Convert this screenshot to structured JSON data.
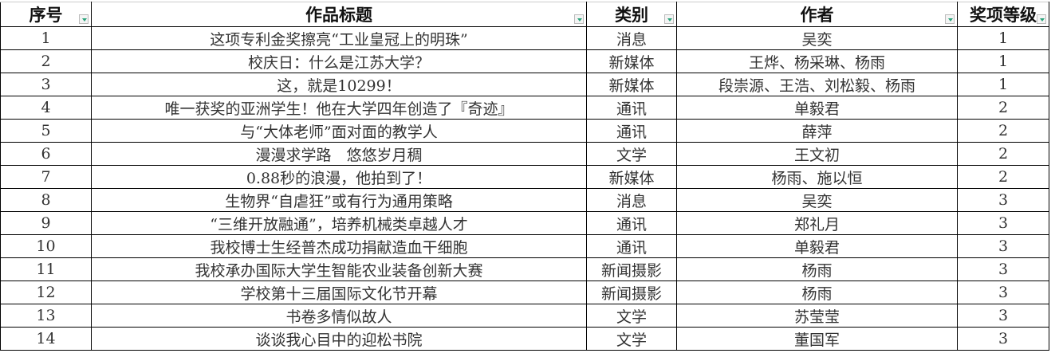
{
  "columns": [
    "序号",
    "作品标题",
    "类别",
    "作者",
    "奖项等级"
  ],
  "rows": [
    [
      "1",
      "这项专利金奖擦亮“工业皇冠上的明珠”",
      "消息",
      "吴奕",
      "1"
    ],
    [
      "2",
      "校庆日：什么是江苏大学？",
      "新媒体",
      "王烨、杨采琳、杨雨",
      "1"
    ],
    [
      "3",
      "这，就是10299！",
      "新媒体",
      "段崇源、王浩、刘松毅、杨雨",
      "1"
    ],
    [
      "4",
      "唯一获奖的亚洲学生！他在大学四年创造了『奇迹』",
      "通讯",
      "单毅君",
      "2"
    ],
    [
      "5",
      "与“大体老师”面对面的教学人",
      "通讯",
      "薛萍",
      "2"
    ],
    [
      "6",
      "漫漫求学路　悠悠岁月稠",
      "文学",
      "王文初",
      "2"
    ],
    [
      "7",
      "0.88秒的浪漫，他拍到了！",
      "新媒体",
      "杨雨、施以恒",
      "2"
    ],
    [
      "8",
      "生物界“自虐狂”或有行为通用策略",
      "消息",
      "吴奕",
      "3"
    ],
    [
      "9",
      "“三维开放融通”，培养机械类卓越人才",
      "通讯",
      "郑礼月",
      "3"
    ],
    [
      "10",
      "我校博士生经普杰成功捐献造血干细胞",
      "通讯",
      "单毅君",
      "3"
    ],
    [
      "11",
      "我校承办国际大学生智能农业装备创新大赛",
      "新闻摄影",
      "杨雨",
      "3"
    ],
    [
      "12",
      "学校第十三届国际文化节开幕",
      "新闻摄影",
      "杨雨",
      "3"
    ],
    [
      "13",
      "书卷多情似故人",
      "文学",
      "苏莹莹",
      "3"
    ],
    [
      "14",
      "谈谈我心目中的迎松书院",
      "文学",
      "董国军",
      "3"
    ]
  ],
  "filter_icon": "filter-dropdown-icon",
  "accent": "#2aa37a"
}
